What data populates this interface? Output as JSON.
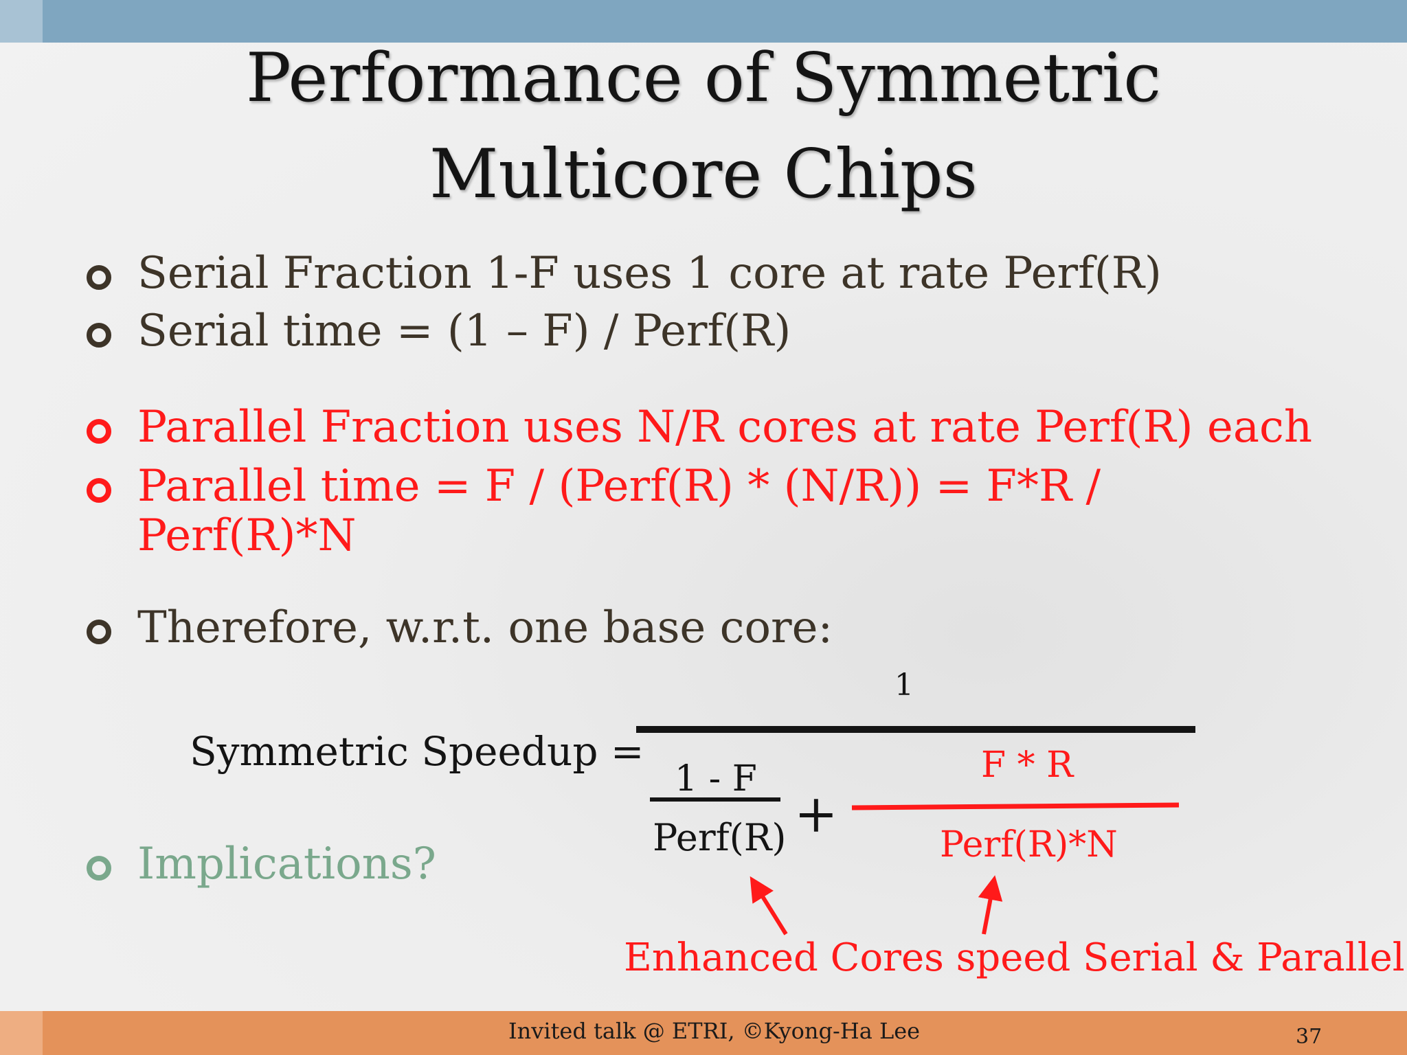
{
  "slide": {
    "title_line1": "Performance of Symmetric",
    "title_line2": "Multicore Chips",
    "bullets": [
      {
        "text": "Serial Fraction 1-F uses 1 core at rate Perf(R)",
        "color": "#3d3428"
      },
      {
        "text": "Serial time = (1 – F) / Perf(R)",
        "color": "#3d3428"
      },
      {
        "text": "Parallel Fraction uses N/R cores at rate Perf(R) each",
        "color": "#ff1a1a"
      },
      {
        "text": "Parallel time = F / (Perf(R) * (N/R)) = F*R / Perf(R)*N",
        "color": "#ff1a1a"
      },
      {
        "text": "Therefore, w.r.t. one base core:",
        "color": "#3d3428"
      },
      {
        "text": "Implications?",
        "color": "#7aa88c"
      }
    ],
    "formula": {
      "label": "Symmetric Speedup  =",
      "numerator": "1",
      "serial_num": "1 - F",
      "serial_den": "Perf(R)",
      "plus": "+",
      "parallel_num": "F * R",
      "parallel_den": "Perf(R)*N"
    },
    "annotation": "Enhanced Cores speed Serial & Parallel",
    "footer": "Invited talk @ ETRI, ©Kyong-Ha Lee",
    "page_number": "37",
    "colors": {
      "top_bar": "#7fa6c0",
      "bottom_bar": "#e4925a",
      "accent_red": "#ff1a1a"
    }
  }
}
